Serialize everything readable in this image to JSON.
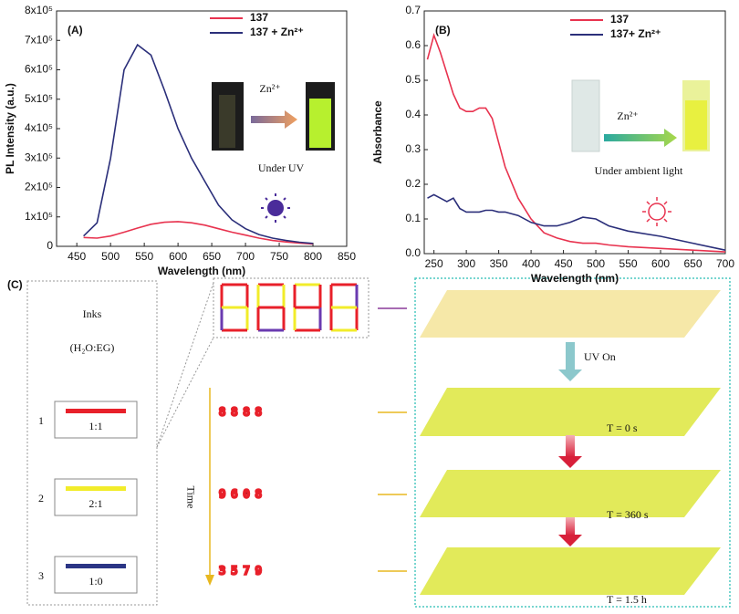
{
  "chart_data": [
    {
      "type": "line",
      "title": "(A)",
      "x_label": "Wavelength (nm)",
      "y_label": "PL Intensity (a.u.)",
      "x": [
        460,
        480,
        500,
        520,
        540,
        560,
        580,
        600,
        620,
        640,
        660,
        680,
        700,
        720,
        740,
        760,
        780,
        800
      ],
      "series": [
        {
          "name": "137",
          "color": "#e8334f",
          "values": [
            30000,
            28000,
            35000,
            48000,
            62000,
            75000,
            82000,
            84000,
            80000,
            72000,
            60000,
            48000,
            38000,
            28000,
            20000,
            15000,
            11000,
            8000
          ]
        },
        {
          "name": "137 + Zn²⁺",
          "color": "#2b2f7a",
          "values": [
            35000,
            80000,
            300000,
            600000,
            685000,
            650000,
            530000,
            400000,
            300000,
            220000,
            140000,
            90000,
            60000,
            40000,
            28000,
            20000,
            14000,
            10000
          ]
        }
      ],
      "xlim": [
        420,
        850
      ],
      "xticks": [
        450,
        500,
        550,
        600,
        650,
        700,
        750,
        800,
        850
      ],
      "ylim": [
        0,
        800000
      ],
      "yticks": [
        0,
        {
          "value": 100000,
          "label": "1x10⁵"
        },
        {
          "value": 200000,
          "label": "2x10⁵"
        },
        {
          "value": 300000,
          "label": "3x10⁵"
        },
        {
          "value": 400000,
          "label": "4x10⁵"
        },
        {
          "value": 500000,
          "label": "5x10⁵"
        },
        {
          "value": 600000,
          "label": "6x10⁵"
        },
        {
          "value": 700000,
          "label": "7x10⁵"
        },
        {
          "value": 800000,
          "label": "8x10⁵"
        }
      ],
      "annotations": [
        "Zn²⁺",
        "Under UV"
      ]
    },
    {
      "type": "line",
      "title": "(B)",
      "x_label": "Wavelength (nm)",
      "y_label": "Absorbance",
      "x": [
        240,
        250,
        260,
        270,
        280,
        290,
        300,
        310,
        320,
        330,
        340,
        350,
        360,
        380,
        400,
        420,
        440,
        460,
        480,
        500,
        520,
        550,
        600,
        650,
        700
      ],
      "series": [
        {
          "name": "137",
          "color": "#e8334f",
          "values": [
            0.56,
            0.63,
            0.58,
            0.52,
            0.46,
            0.42,
            0.41,
            0.41,
            0.42,
            0.42,
            0.39,
            0.32,
            0.25,
            0.16,
            0.1,
            0.06,
            0.045,
            0.035,
            0.03,
            0.03,
            0.025,
            0.02,
            0.015,
            0.01,
            0.005
          ]
        },
        {
          "name": "137+ Zn²⁺",
          "color": "#2b2f7a",
          "values": [
            0.16,
            0.17,
            0.16,
            0.15,
            0.16,
            0.13,
            0.12,
            0.12,
            0.12,
            0.125,
            0.125,
            0.12,
            0.12,
            0.11,
            0.09,
            0.08,
            0.08,
            0.09,
            0.105,
            0.1,
            0.08,
            0.065,
            0.05,
            0.03,
            0.01
          ]
        }
      ],
      "xlim": [
        235,
        700
      ],
      "xticks": [
        250,
        300,
        350,
        400,
        450,
        500,
        550,
        600,
        650,
        700
      ],
      "ylim": [
        0,
        0.7
      ],
      "yticks": [
        {
          "value": 0,
          "label": "0.0"
        },
        0.1,
        0.2,
        0.3,
        0.4,
        0.5,
        0.6,
        0.7
      ],
      "annotations": [
        "Zn²⁺",
        "Under ambient light"
      ]
    }
  ],
  "diagram": {
    "label": "(C)",
    "inks_title": "Inks",
    "inks_subtitle": "(H₂O:EG)",
    "inks": [
      {
        "number": "1",
        "ratio": "1:1",
        "color": "#e8202a"
      },
      {
        "number": "2",
        "ratio": "2:1",
        "color": "#f2ec2a"
      },
      {
        "number": "3",
        "ratio": "1:0",
        "color": "#2b3585"
      }
    ],
    "displays": [
      "8888",
      "9608",
      "3579"
    ],
    "time_label": "Time",
    "uv_label": "UV On",
    "times": [
      "T = 0 s",
      "T = 360 s",
      "T = 1.5 h"
    ]
  }
}
